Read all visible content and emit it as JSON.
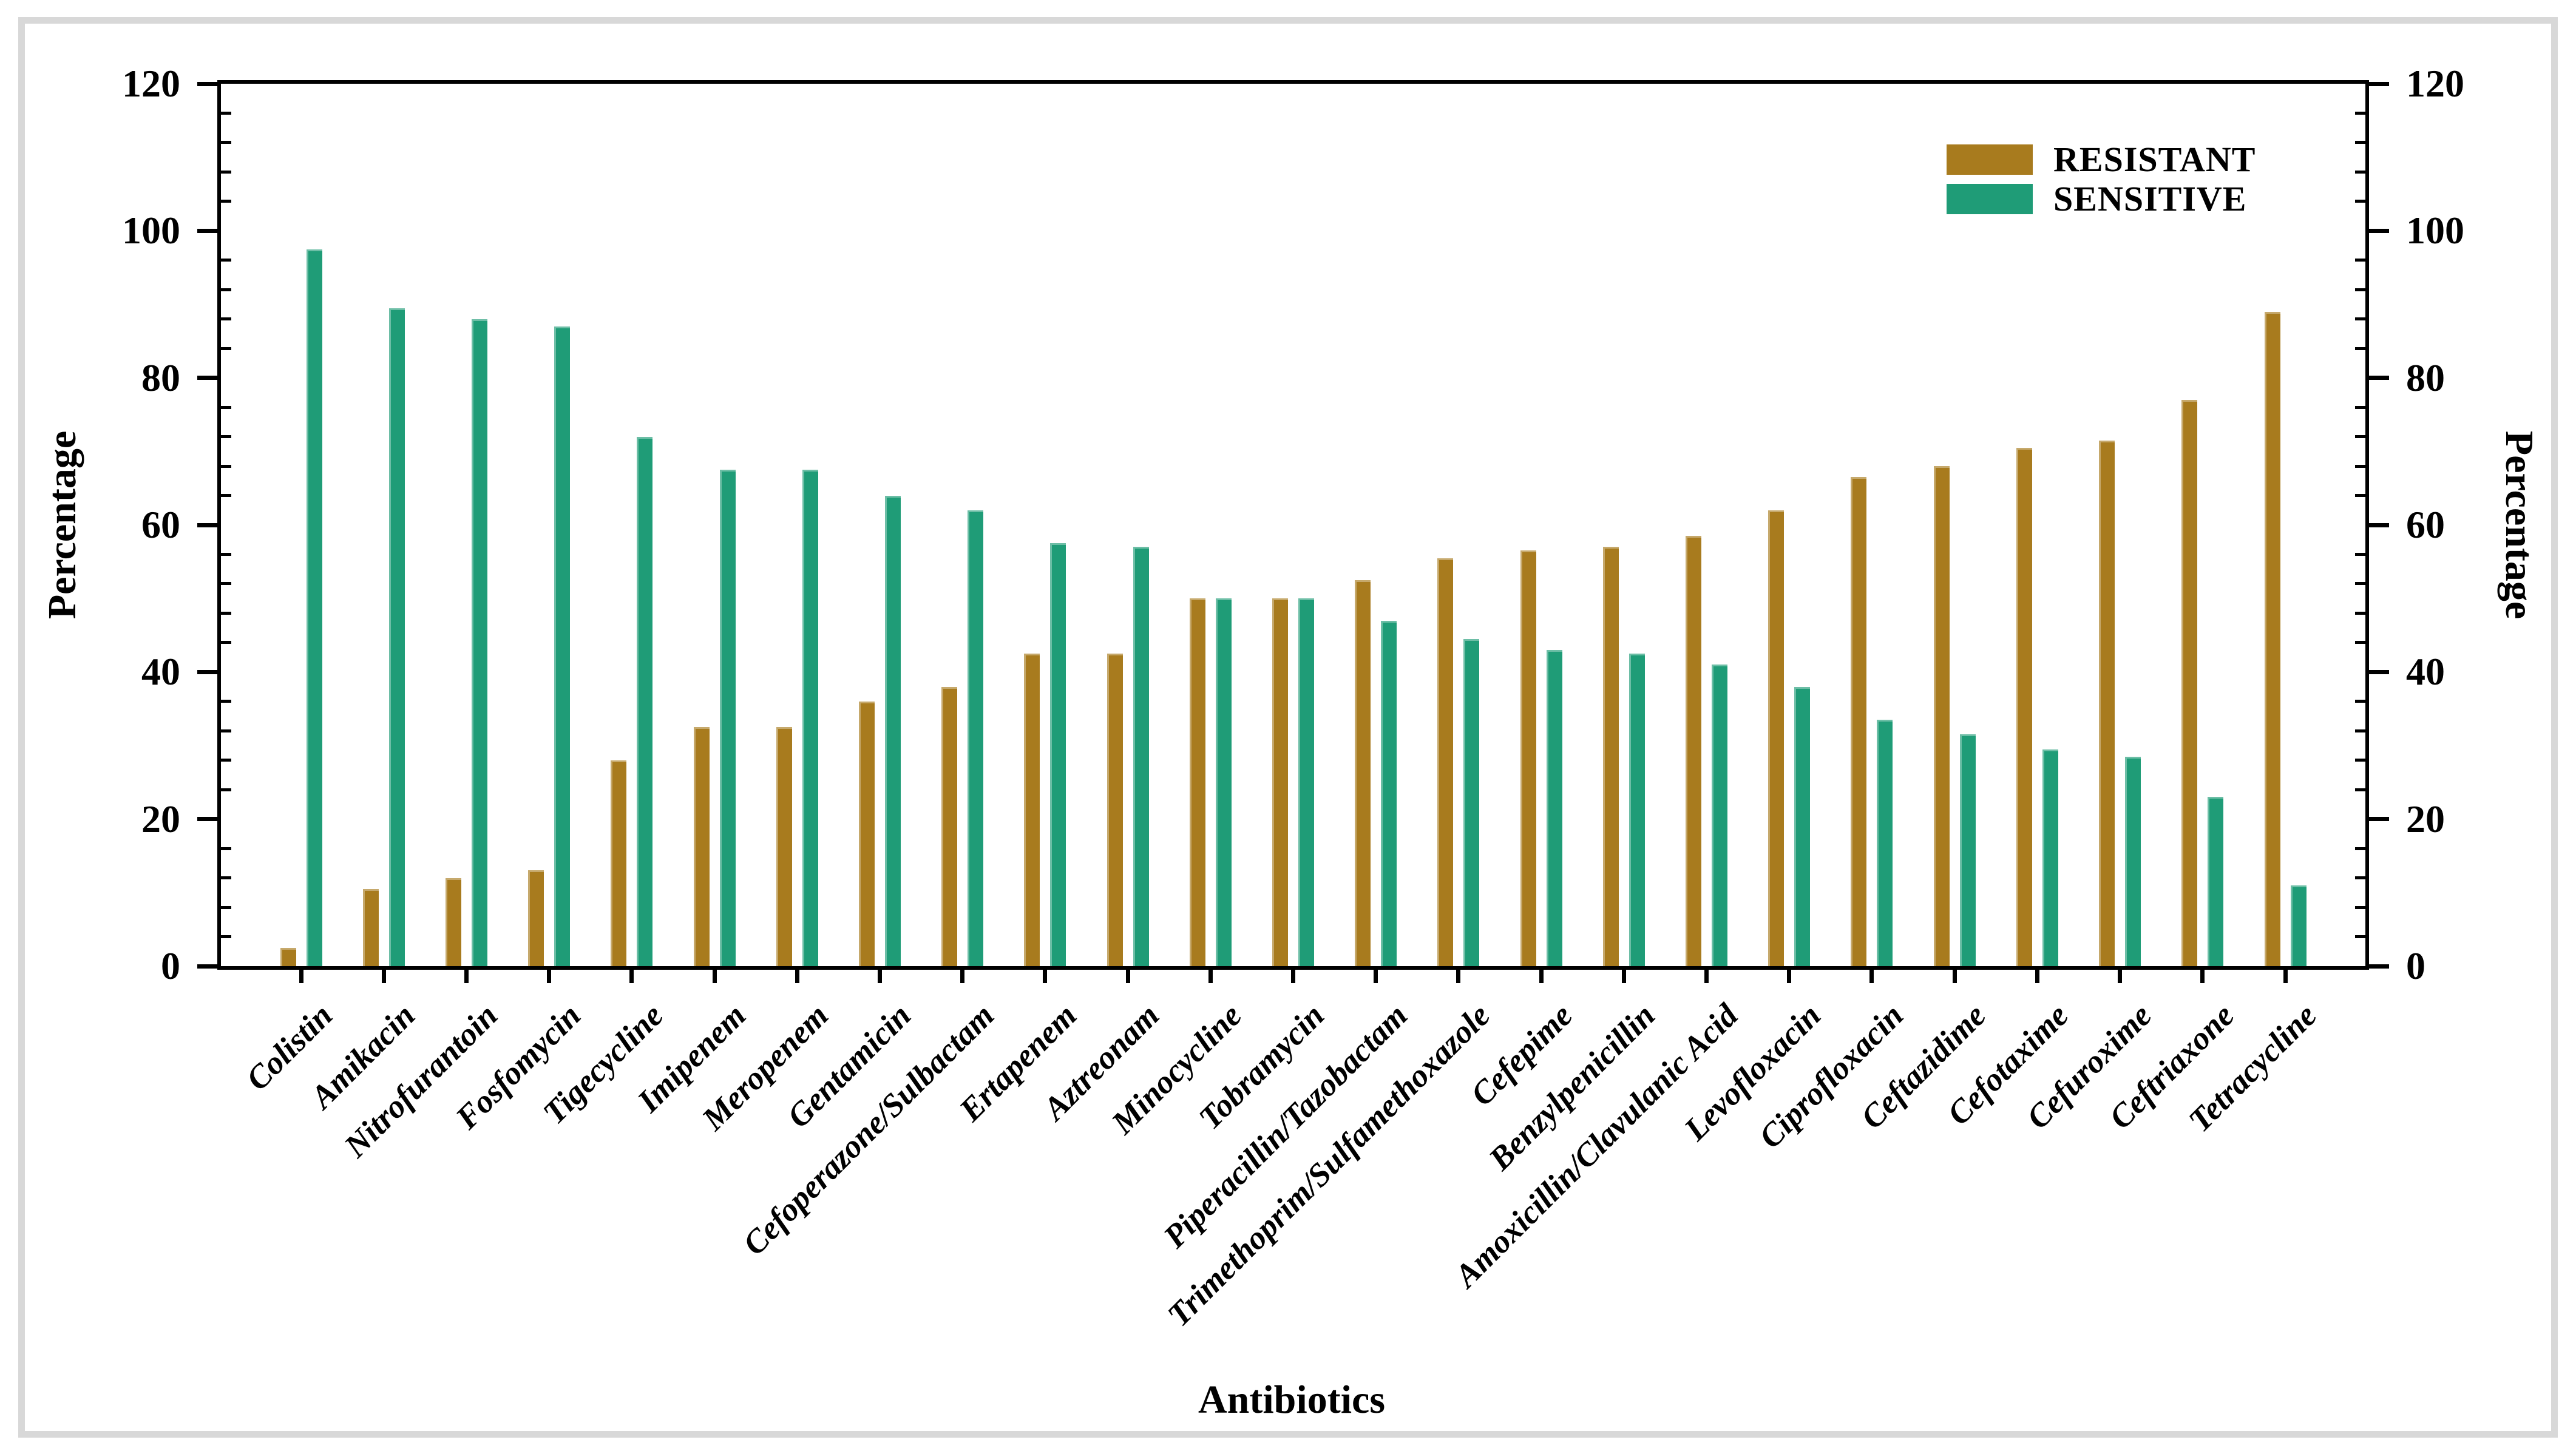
{
  "frame": {
    "border_color": "#d8d8d8"
  },
  "chart_data": {
    "type": "bar",
    "title": "",
    "xlabel": "Antibiotics",
    "ylabel_left": "Percentage",
    "ylabel_right": "Percentage",
    "ylim": [
      0,
      120
    ],
    "ytick_major_step": 20,
    "ytick_minor_step": 4,
    "grid": false,
    "legend_position": "top-right-inside",
    "categories": [
      "Colistin",
      "Amikacin",
      "Nitrofurantoin",
      "Fosfomycin",
      "Tigecycline",
      "Imipenem",
      "Meropenem",
      "Gentamicin",
      "Cefoperazone/Sulbactam",
      "Ertapenem",
      "Aztreonam",
      "Minocycline",
      "Tobramycin",
      "Piperacillin/Tazobactam",
      "Trimethoprim/Sulfamethoxazole",
      "Cefepime",
      "Benzylpenicillin",
      "Amoxicillin/Clavulanic Acid",
      "Levofloxacin",
      "Ciprofloxacin",
      "Ceftazidime",
      "Cefotaxime",
      "Cefuroxime",
      "Ceftriaxone",
      "Tetracycline"
    ],
    "series": [
      {
        "name": "RESISTANT",
        "color": "#a87b1e",
        "values": [
          2.5,
          10.5,
          12,
          13,
          28,
          32.5,
          32.5,
          36,
          38,
          42.5,
          42.5,
          50,
          50,
          52.5,
          55.5,
          56.5,
          57,
          58.5,
          62,
          66.5,
          68,
          70.5,
          71.5,
          77,
          89
        ]
      },
      {
        "name": "SENSITIVE",
        "color": "#1f9c77",
        "values": [
          97.5,
          89.5,
          88,
          87,
          72,
          67.5,
          67.5,
          64,
          62,
          57.5,
          57,
          50,
          50,
          47,
          44.5,
          43,
          42.5,
          41,
          38,
          33.5,
          31.5,
          29.5,
          28.5,
          23,
          11
        ]
      }
    ]
  }
}
